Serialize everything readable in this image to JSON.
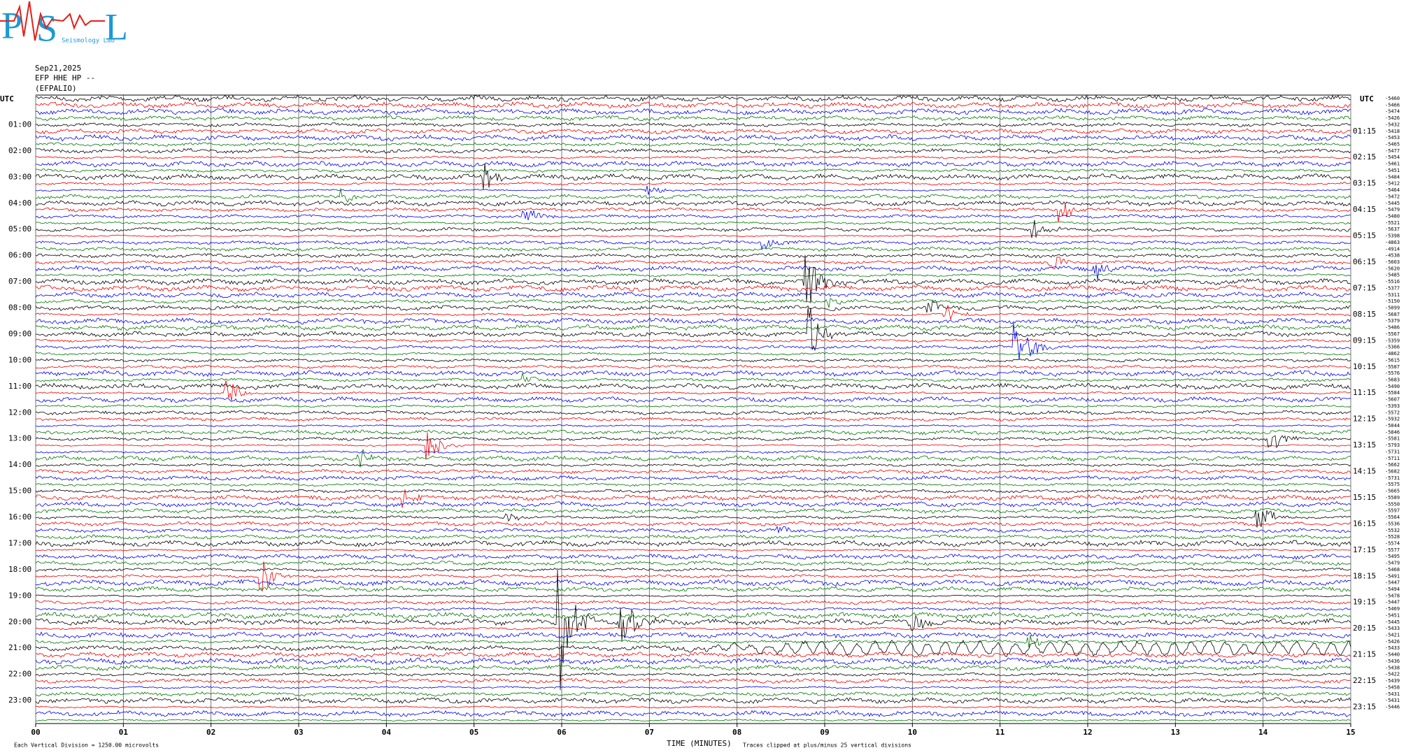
{
  "logo": {
    "letters": [
      "P",
      "S",
      "L"
    ],
    "caption": "Seismology Lab"
  },
  "header": {
    "date": "Sep21,2025",
    "station": "EFP HHE HP --",
    "network": "(EFPALIO)"
  },
  "left_axis": {
    "title": "UTC",
    "labels": [
      "01:00",
      "02:00",
      "03:00",
      "04:00",
      "05:00",
      "06:00",
      "07:00",
      "08:00",
      "09:00",
      "10:00",
      "11:00",
      "12:00",
      "13:00",
      "14:00",
      "15:00",
      "16:00",
      "17:00",
      "18:00",
      "19:00",
      "20:00",
      "21:00",
      "22:00",
      "23:00"
    ]
  },
  "right_axis": {
    "title": "UTC",
    "labels": [
      "01:15",
      "02:15",
      "03:15",
      "04:15",
      "05:15",
      "06:15",
      "07:15",
      "08:15",
      "09:15",
      "10:15",
      "11:15",
      "12:15",
      "13:15",
      "14:15",
      "15:15",
      "16:15",
      "17:15",
      "18:15",
      "19:15",
      "20:15",
      "21:15",
      "22:15",
      "23:15"
    ]
  },
  "offsets": [
    "-5460",
    "-5466",
    "-5474",
    "-5426",
    "-5432",
    "-5418",
    "-5453",
    "-5465",
    "-5477",
    "-5454",
    "-5461",
    "-5451",
    "-5484",
    "-5412",
    "-5464",
    "-5472",
    "-5445",
    "-5479",
    "-5480",
    "-5521",
    "-5637",
    "-5398",
    "-4863",
    "-4914",
    "-4538",
    "-5603",
    "-5620",
    "-5485",
    "-5516",
    "-5377",
    "-5311",
    "-5150",
    "-5099",
    "-5687",
    "-5379",
    "-5486",
    "-5567",
    "-5359",
    "-5366",
    "-4862",
    "-5615",
    "-5587",
    "-5576",
    "-5683",
    "-5490",
    "-5584",
    "-5607",
    "-5393",
    "-5572",
    "-5932",
    "-5044",
    "-5846",
    "-5581",
    "-5793",
    "-5731",
    "-5711",
    "-5662",
    "-5682",
    "-5731",
    "-5575",
    "-5665",
    "-5589",
    "-5550",
    "-5597",
    "-5564",
    "-5536",
    "-5532",
    "-5528",
    "-5574",
    "-5577",
    "-5495",
    "-5479",
    "-5468",
    "-5491",
    "-5447",
    "-5494",
    "-5478",
    "-5447",
    "-5469",
    "-5451",
    "-5445",
    "-5433",
    "-5421",
    "-5426",
    "-5433",
    "-5440",
    "-5436",
    "-5438",
    "-5422",
    "-5439",
    "-5458",
    "-5431",
    "-5431",
    "-5446"
  ],
  "x_axis": {
    "ticks": [
      "00",
      "01",
      "02",
      "03",
      "04",
      "05",
      "06",
      "07",
      "08",
      "09",
      "10",
      "11",
      "12",
      "13",
      "14",
      "15"
    ],
    "title": "TIME (MINUTES)"
  },
  "footer": {
    "division": "Each Vertical Division = 1250.00 microvolts",
    "clip": "Traces clipped at plus/minus 25 vertical divisions"
  }
}
